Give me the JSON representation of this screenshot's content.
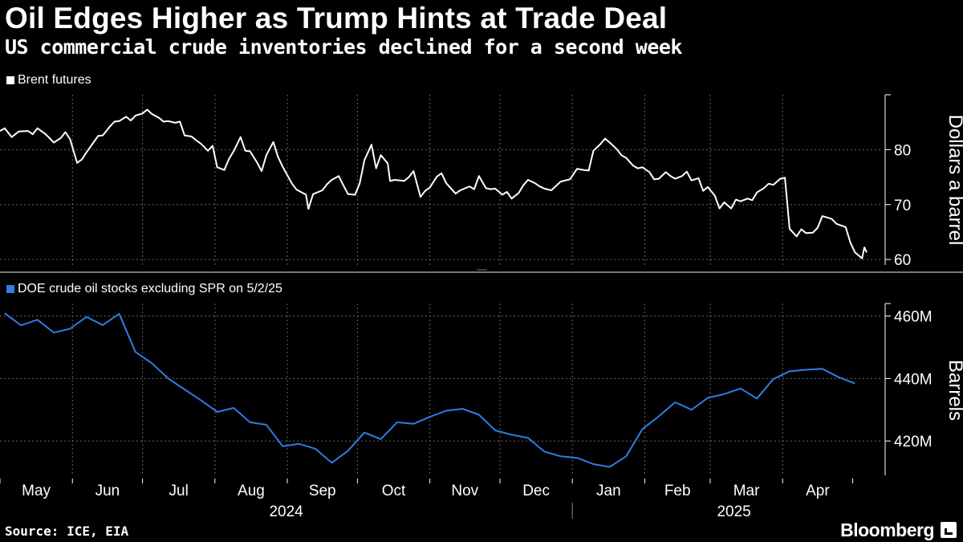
{
  "header": {
    "title": "Oil Edges Higher as Trump Hints at Trade Deal",
    "subtitle": "US commercial crude inventories declined for a second week"
  },
  "footer": {
    "source": "Source: ICE, EIA",
    "brand": "Bloomberg"
  },
  "colors": {
    "background": "#000000",
    "brent_line": "#ffffff",
    "doe_line": "#2e7de1",
    "grid": "#666666",
    "text": "#ffffff"
  },
  "chart_data": [
    {
      "type": "line",
      "legend": "Brent futures",
      "ylabel": "Dollars a barrel",
      "y_ticks": [
        "60",
        "70",
        "80"
      ],
      "ylim": [
        59,
        90
      ],
      "x_ticks": [
        "May",
        "Jun",
        "Jul",
        "Aug",
        "Sep",
        "Oct",
        "Nov",
        "Dec",
        "Jan",
        "Feb",
        "Mar",
        "Apr"
      ],
      "x_groups": [
        "2024",
        "2025"
      ],
      "series": [
        {
          "name": "Brent futures",
          "points": [
            [
              "2024-05-01",
              83.4
            ],
            [
              "2024-05-03",
              83.9
            ],
            [
              "2024-05-06",
              82.3
            ],
            [
              "2024-05-09",
              83.3
            ],
            [
              "2024-05-13",
              83.4
            ],
            [
              "2024-05-15",
              82.8
            ],
            [
              "2024-05-17",
              83.9
            ],
            [
              "2024-05-20",
              83.0
            ],
            [
              "2024-05-22",
              82.2
            ],
            [
              "2024-05-24",
              81.3
            ],
            [
              "2024-05-27",
              82.1
            ],
            [
              "2024-05-29",
              83.2
            ],
            [
              "2024-05-31",
              81.9
            ],
            [
              "2024-06-03",
              77.6
            ],
            [
              "2024-06-05",
              78.2
            ],
            [
              "2024-06-07",
              79.5
            ],
            [
              "2024-06-10",
              81.3
            ],
            [
              "2024-06-12",
              82.5
            ],
            [
              "2024-06-14",
              82.6
            ],
            [
              "2024-06-17",
              84.2
            ],
            [
              "2024-06-19",
              85.1
            ],
            [
              "2024-06-21",
              85.2
            ],
            [
              "2024-06-24",
              86.0
            ],
            [
              "2024-06-26",
              85.3
            ],
            [
              "2024-06-28",
              86.2
            ],
            [
              "2024-07-01",
              86.6
            ],
            [
              "2024-07-03",
              87.3
            ],
            [
              "2024-07-05",
              86.5
            ],
            [
              "2024-07-08",
              85.8
            ],
            [
              "2024-07-10",
              85.1
            ],
            [
              "2024-07-12",
              85.2
            ],
            [
              "2024-07-15",
              84.9
            ],
            [
              "2024-07-17",
              85.1
            ],
            [
              "2024-07-19",
              82.6
            ],
            [
              "2024-07-22",
              82.4
            ],
            [
              "2024-07-24",
              81.7
            ],
            [
              "2024-07-26",
              81.1
            ],
            [
              "2024-07-29",
              79.8
            ],
            [
              "2024-07-31",
              80.7
            ],
            [
              "2024-08-02",
              76.8
            ],
            [
              "2024-08-05",
              76.3
            ],
            [
              "2024-08-07",
              78.3
            ],
            [
              "2024-08-09",
              79.7
            ],
            [
              "2024-08-12",
              82.3
            ],
            [
              "2024-08-14",
              79.8
            ],
            [
              "2024-08-16",
              79.7
            ],
            [
              "2024-08-19",
              77.7
            ],
            [
              "2024-08-21",
              76.1
            ],
            [
              "2024-08-23",
              79.0
            ],
            [
              "2024-08-26",
              81.4
            ],
            [
              "2024-08-28",
              78.7
            ],
            [
              "2024-08-30",
              76.9
            ],
            [
              "2024-09-03",
              73.8
            ],
            [
              "2024-09-05",
              72.7
            ],
            [
              "2024-09-09",
              71.8
            ],
            [
              "2024-09-10",
              69.2
            ],
            [
              "2024-09-12",
              71.9
            ],
            [
              "2024-09-16",
              72.6
            ],
            [
              "2024-09-18",
              73.7
            ],
            [
              "2024-09-20",
              74.5
            ],
            [
              "2024-09-23",
              75.2
            ],
            [
              "2024-09-25",
              73.5
            ],
            [
              "2024-09-27",
              71.9
            ],
            [
              "2024-09-30",
              71.8
            ],
            [
              "2024-10-02",
              73.9
            ],
            [
              "2024-10-04",
              78.1
            ],
            [
              "2024-10-07",
              80.9
            ],
            [
              "2024-10-09",
              76.6
            ],
            [
              "2024-10-11",
              79.0
            ],
            [
              "2024-10-14",
              77.5
            ],
            [
              "2024-10-15",
              74.3
            ],
            [
              "2024-10-17",
              74.5
            ],
            [
              "2024-10-21",
              74.3
            ],
            [
              "2024-10-23",
              75.0
            ],
            [
              "2024-10-25",
              76.1
            ],
            [
              "2024-10-28",
              71.4
            ],
            [
              "2024-10-30",
              72.5
            ],
            [
              "2024-11-01",
              73.1
            ],
            [
              "2024-11-04",
              75.1
            ],
            [
              "2024-11-06",
              75.7
            ],
            [
              "2024-11-08",
              73.9
            ],
            [
              "2024-11-12",
              72.0
            ],
            [
              "2024-11-14",
              72.6
            ],
            [
              "2024-11-18",
              73.3
            ],
            [
              "2024-11-20",
              72.8
            ],
            [
              "2024-11-22",
              75.2
            ],
            [
              "2024-11-25",
              73.0
            ],
            [
              "2024-11-27",
              72.8
            ],
            [
              "2024-11-29",
              72.9
            ],
            [
              "2024-12-02",
              71.8
            ],
            [
              "2024-12-04",
              72.3
            ],
            [
              "2024-12-06",
              71.1
            ],
            [
              "2024-12-09",
              72.1
            ],
            [
              "2024-12-11",
              73.5
            ],
            [
              "2024-12-13",
              74.5
            ],
            [
              "2024-12-16",
              73.9
            ],
            [
              "2024-12-18",
              73.3
            ],
            [
              "2024-12-20",
              72.9
            ],
            [
              "2024-12-23",
              72.6
            ],
            [
              "2024-12-27",
              74.2
            ],
            [
              "2024-12-31",
              74.6
            ],
            [
              "2025-01-03",
              76.5
            ],
            [
              "2025-01-06",
              76.3
            ],
            [
              "2025-01-08",
              76.2
            ],
            [
              "2025-01-10",
              79.8
            ],
            [
              "2025-01-13",
              81.0
            ],
            [
              "2025-01-15",
              82.0
            ],
            [
              "2025-01-17",
              81.3
            ],
            [
              "2025-01-20",
              80.1
            ],
            [
              "2025-01-22",
              79.0
            ],
            [
              "2025-01-24",
              78.5
            ],
            [
              "2025-01-27",
              77.1
            ],
            [
              "2025-01-29",
              76.6
            ],
            [
              "2025-01-31",
              76.8
            ],
            [
              "2025-02-03",
              75.9
            ],
            [
              "2025-02-05",
              74.6
            ],
            [
              "2025-02-07",
              74.7
            ],
            [
              "2025-02-10",
              75.9
            ],
            [
              "2025-02-12",
              75.2
            ],
            [
              "2025-02-14",
              74.7
            ],
            [
              "2025-02-17",
              75.2
            ],
            [
              "2025-02-19",
              76.0
            ],
            [
              "2025-02-21",
              74.4
            ],
            [
              "2025-02-24",
              74.8
            ],
            [
              "2025-02-26",
              72.5
            ],
            [
              "2025-02-28",
              73.2
            ],
            [
              "2025-03-03",
              71.6
            ],
            [
              "2025-03-05",
              69.3
            ],
            [
              "2025-03-07",
              70.4
            ],
            [
              "2025-03-10",
              69.3
            ],
            [
              "2025-03-12",
              70.9
            ],
            [
              "2025-03-14",
              70.6
            ],
            [
              "2025-03-17",
              71.1
            ],
            [
              "2025-03-19",
              70.8
            ],
            [
              "2025-03-21",
              72.2
            ],
            [
              "2025-03-24",
              73.0
            ],
            [
              "2025-03-26",
              73.8
            ],
            [
              "2025-03-28",
              73.6
            ],
            [
              "2025-03-31",
              74.7
            ],
            [
              "2025-04-02",
              74.9
            ],
            [
              "2025-04-04",
              65.6
            ],
            [
              "2025-04-07",
              64.2
            ],
            [
              "2025-04-09",
              65.5
            ],
            [
              "2025-04-11",
              64.8
            ],
            [
              "2025-04-14",
              64.9
            ],
            [
              "2025-04-16",
              65.8
            ],
            [
              "2025-04-18",
              67.9
            ],
            [
              "2025-04-22",
              67.4
            ],
            [
              "2025-04-24",
              66.5
            ],
            [
              "2025-04-28",
              65.9
            ],
            [
              "2025-04-30",
              63.1
            ],
            [
              "2025-05-02",
              61.3
            ],
            [
              "2025-05-05",
              60.2
            ],
            [
              "2025-05-06",
              62.2
            ],
            [
              "2025-05-07",
              61.3
            ]
          ]
        }
      ]
    },
    {
      "type": "line",
      "legend": "DOE crude oil stocks excluding SPR on 5/2/25",
      "ylabel": "Barrels",
      "y_ticks": [
        "420M",
        "440M",
        "460M"
      ],
      "ylim": [
        409,
        464
      ],
      "x_ticks": [
        "May",
        "Jun",
        "Jul",
        "Aug",
        "Sep",
        "Oct",
        "Nov",
        "Dec",
        "Jan",
        "Feb",
        "Mar",
        "Apr"
      ],
      "x_groups": [
        "2024",
        "2025"
      ],
      "series": [
        {
          "name": "DOE crude oil stocks excluding SPR on 5/2/25",
          "points": [
            [
              "2024-05-03",
              460.9
            ],
            [
              "2024-05-10",
              457.0
            ],
            [
              "2024-05-17",
              458.8
            ],
            [
              "2024-05-24",
              454.7
            ],
            [
              "2024-05-31",
              455.9
            ],
            [
              "2024-06-07",
              459.7
            ],
            [
              "2024-06-14",
              457.1
            ],
            [
              "2024-06-21",
              460.7
            ],
            [
              "2024-06-28",
              448.5
            ],
            [
              "2024-07-05",
              444.9
            ],
            [
              "2024-07-12",
              440.0
            ],
            [
              "2024-07-19",
              436.5
            ],
            [
              "2024-07-26",
              433.0
            ],
            [
              "2024-08-02",
              429.3
            ],
            [
              "2024-08-09",
              430.6
            ],
            [
              "2024-08-16",
              426.0
            ],
            [
              "2024-08-23",
              425.2
            ],
            [
              "2024-08-30",
              418.3
            ],
            [
              "2024-09-06",
              419.1
            ],
            [
              "2024-09-13",
              417.5
            ],
            [
              "2024-09-20",
              413.0
            ],
            [
              "2024-09-27",
              416.9
            ],
            [
              "2024-10-04",
              422.7
            ],
            [
              "2024-10-11",
              420.6
            ],
            [
              "2024-10-18",
              426.0
            ],
            [
              "2024-10-25",
              425.5
            ],
            [
              "2024-11-01",
              427.7
            ],
            [
              "2024-11-08",
              429.7
            ],
            [
              "2024-11-15",
              430.3
            ],
            [
              "2024-11-22",
              428.4
            ],
            [
              "2024-11-29",
              423.4
            ],
            [
              "2024-12-06",
              422.0
            ],
            [
              "2024-12-13",
              421.0
            ],
            [
              "2024-12-20",
              416.6
            ],
            [
              "2024-12-27",
              415.1
            ],
            [
              "2025-01-03",
              414.6
            ],
            [
              "2025-01-10",
              412.6
            ],
            [
              "2025-01-17",
              411.7
            ],
            [
              "2025-01-24",
              415.1
            ],
            [
              "2025-01-31",
              423.8
            ],
            [
              "2025-02-07",
              427.9
            ],
            [
              "2025-02-14",
              432.4
            ],
            [
              "2025-02-21",
              430.0
            ],
            [
              "2025-02-28",
              433.8
            ],
            [
              "2025-03-07",
              435.0
            ],
            [
              "2025-03-14",
              436.8
            ],
            [
              "2025-03-21",
              433.6
            ],
            [
              "2025-03-28",
              439.8
            ],
            [
              "2025-04-04",
              442.3
            ],
            [
              "2025-04-11",
              442.8
            ],
            [
              "2025-04-18",
              443.1
            ],
            [
              "2025-04-25",
              440.4
            ],
            [
              "2025-05-02",
              438.4
            ]
          ]
        }
      ]
    }
  ]
}
